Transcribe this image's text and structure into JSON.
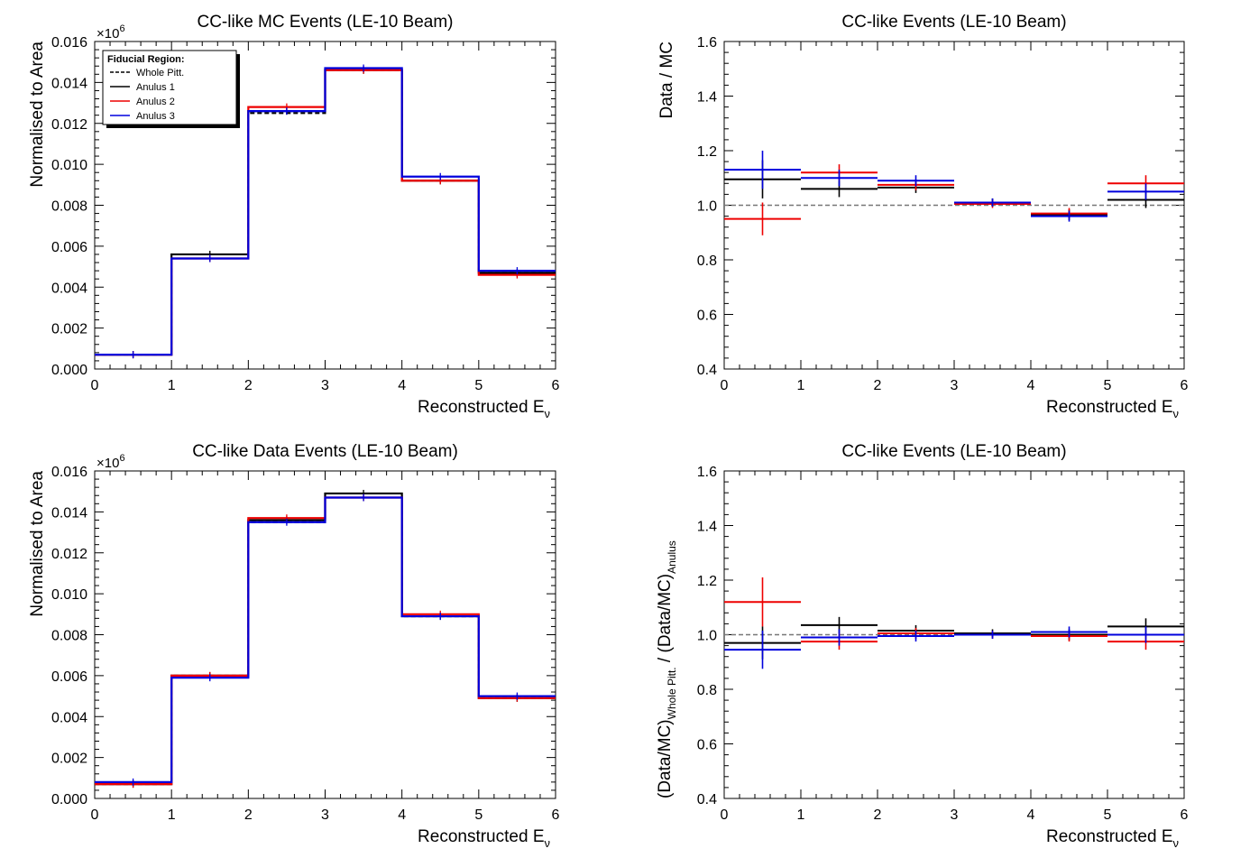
{
  "chart_data": [
    {
      "type": "bar",
      "title": "CC-like MC Events (LE-10 Beam)",
      "xlabel": "Reconstructed E",
      "xlabel_sub": "ν",
      "ylabel": "Normalised to Area",
      "y_multiplier": "×10",
      "y_multiplier_exp": "6",
      "xlim": [
        0,
        6
      ],
      "ylim": [
        0,
        0.016
      ],
      "x_ticks": [
        "0",
        "1",
        "2",
        "3",
        "4",
        "5",
        "6"
      ],
      "y_ticks": [
        "0.000",
        "0.002",
        "0.004",
        "0.006",
        "0.008",
        "0.010",
        "0.012",
        "0.014",
        "0.016"
      ],
      "bin_edges": [
        0,
        1,
        2,
        3,
        4,
        5,
        6
      ],
      "legend": {
        "title": "Fiducial Region:",
        "position": "top-left",
        "entries": [
          "Whole Pitt.",
          "Anulus 1",
          "Anulus 2",
          "Anulus 3"
        ]
      },
      "series": [
        {
          "name": "Whole Pitt.",
          "style": "dashed",
          "color": "#000000",
          "values": [
            0.0007,
            0.0054,
            0.0125,
            0.0146,
            0.0092,
            0.0047
          ]
        },
        {
          "name": "Anulus 1",
          "style": "solid",
          "color": "#000000",
          "values": [
            0.0007,
            0.0056,
            0.0126,
            0.0146,
            0.0092,
            0.0047
          ]
        },
        {
          "name": "Anulus 2",
          "style": "solid",
          "color": "#ee0000",
          "values": [
            0.0007,
            0.0054,
            0.0128,
            0.0146,
            0.0092,
            0.0046
          ]
        },
        {
          "name": "Anulus 3",
          "style": "solid",
          "color": "#0000dd",
          "values": [
            0.0007,
            0.0054,
            0.0126,
            0.0147,
            0.0094,
            0.0048
          ]
        }
      ]
    },
    {
      "type": "scatter",
      "title": "CC-like Events (LE-10 Beam)",
      "xlabel": "Reconstructed E",
      "xlabel_sub": "ν",
      "ylabel": "Data / MC",
      "xlim": [
        0,
        6
      ],
      "ylim": [
        0.4,
        1.6
      ],
      "x_ticks": [
        "0",
        "1",
        "2",
        "3",
        "4",
        "5",
        "6"
      ],
      "y_ticks": [
        "0.4",
        "0.6",
        "0.8",
        "1.0",
        "1.2",
        "1.4",
        "1.6"
      ],
      "reference_line": 1.0,
      "bin_edges": [
        0,
        1,
        2,
        3,
        4,
        5,
        6
      ],
      "series": [
        {
          "name": "Anulus 1",
          "color": "#000000",
          "values": [
            1.095,
            1.06,
            1.065,
            1.01,
            0.965,
            1.02
          ],
          "errors": [
            0.07,
            0.03,
            0.02,
            0.015,
            0.02,
            0.03
          ]
        },
        {
          "name": "Anulus 2",
          "color": "#ee0000",
          "values": [
            0.95,
            1.12,
            1.075,
            1.005,
            0.97,
            1.08
          ],
          "errors": [
            0.06,
            0.03,
            0.02,
            0.015,
            0.02,
            0.03
          ]
        },
        {
          "name": "Anulus 3",
          "color": "#0000dd",
          "values": [
            1.13,
            1.1,
            1.09,
            1.01,
            0.96,
            1.05
          ],
          "errors": [
            0.07,
            0.03,
            0.02,
            0.015,
            0.02,
            0.03
          ]
        }
      ]
    },
    {
      "type": "bar",
      "title": "CC-like Data Events (LE-10 Beam)",
      "xlabel": "Reconstructed E",
      "xlabel_sub": "ν",
      "ylabel": "Normalised to Area",
      "y_multiplier": "×10",
      "y_multiplier_exp": "6",
      "xlim": [
        0,
        6
      ],
      "ylim": [
        0,
        0.016
      ],
      "x_ticks": [
        "0",
        "1",
        "2",
        "3",
        "4",
        "5",
        "6"
      ],
      "y_ticks": [
        "0.000",
        "0.002",
        "0.004",
        "0.006",
        "0.008",
        "0.010",
        "0.012",
        "0.014",
        "0.016"
      ],
      "bin_edges": [
        0,
        1,
        2,
        3,
        4,
        5,
        6
      ],
      "series": [
        {
          "name": "Whole Pitt.",
          "style": "dashed",
          "color": "#000000",
          "values": [
            0.0007,
            0.006,
            0.0135,
            0.0147,
            0.0089,
            0.0049
          ]
        },
        {
          "name": "Anulus 1",
          "style": "solid",
          "color": "#000000",
          "values": [
            0.0007,
            0.006,
            0.0136,
            0.0149,
            0.0089,
            0.0049
          ]
        },
        {
          "name": "Anulus 2",
          "style": "solid",
          "color": "#ee0000",
          "values": [
            0.0007,
            0.006,
            0.0137,
            0.0147,
            0.009,
            0.0049
          ]
        },
        {
          "name": "Anulus 3",
          "style": "solid",
          "color": "#0000dd",
          "values": [
            0.0008,
            0.0059,
            0.0135,
            0.0147,
            0.0089,
            0.005
          ]
        }
      ]
    },
    {
      "type": "scatter",
      "title": "CC-like Events (LE-10 Beam)",
      "xlabel": "Reconstructed E",
      "xlabel_sub": "ν",
      "ylabel_parts": [
        "(Data/MC)",
        "Whole Pitt.",
        " / (Data/MC)",
        "Anulus"
      ],
      "xlim": [
        0,
        6
      ],
      "ylim": [
        0.4,
        1.6
      ],
      "x_ticks": [
        "0",
        "1",
        "2",
        "3",
        "4",
        "5",
        "6"
      ],
      "y_ticks": [
        "0.4",
        "0.6",
        "0.8",
        "1.0",
        "1.2",
        "1.4",
        "1.6"
      ],
      "reference_line": 1.0,
      "bin_edges": [
        0,
        1,
        2,
        3,
        4,
        5,
        6
      ],
      "series": [
        {
          "name": "Anulus 1",
          "color": "#000000",
          "values": [
            0.97,
            1.035,
            1.015,
            1.005,
            1.0,
            1.03
          ],
          "errors": [
            0.06,
            0.03,
            0.02,
            0.015,
            0.02,
            0.03
          ]
        },
        {
          "name": "Anulus 2",
          "color": "#ee0000",
          "values": [
            1.12,
            0.975,
            1.005,
            1.0,
            0.995,
            0.975
          ],
          "errors": [
            0.09,
            0.03,
            0.02,
            0.015,
            0.02,
            0.03
          ]
        },
        {
          "name": "Anulus 3",
          "color": "#0000dd",
          "values": [
            0.945,
            0.99,
            0.995,
            1.0,
            1.01,
            1.0
          ],
          "errors": [
            0.07,
            0.03,
            0.02,
            0.015,
            0.02,
            0.03
          ]
        }
      ]
    }
  ]
}
